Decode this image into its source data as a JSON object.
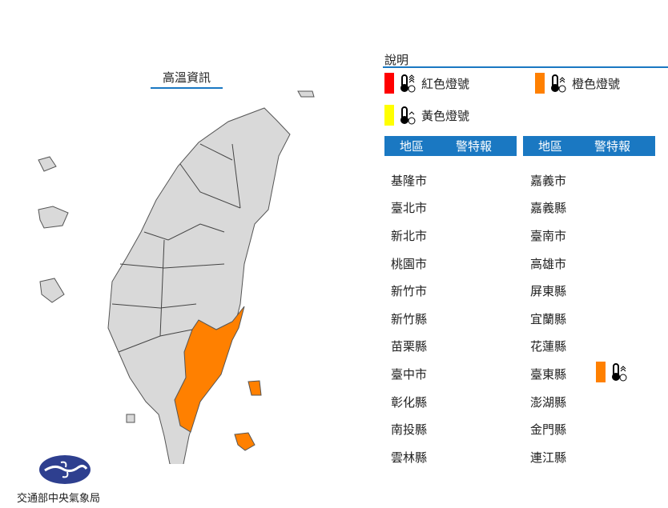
{
  "map": {
    "title": "高溫資訊",
    "highlighted": [
      "臺東縣"
    ],
    "highlight_color": "#ff8000",
    "land_color": "#d9d9d9"
  },
  "legend": {
    "title": "說明",
    "items": [
      {
        "label": "紅色燈號",
        "color": "#ff0000",
        "icon": "thermometer-alert-icon"
      },
      {
        "label": "橙色燈號",
        "color": "#ff8000",
        "icon": "thermometer-alert-icon"
      },
      {
        "label": "黃色燈號",
        "color": "#ffff00",
        "icon": "thermometer-alert-icon"
      }
    ]
  },
  "table": {
    "headers": [
      "地區",
      "警特報"
    ],
    "left": [
      {
        "name": "基隆市"
      },
      {
        "name": "臺北市"
      },
      {
        "name": "新北市"
      },
      {
        "name": "桃園市"
      },
      {
        "name": "新竹市"
      },
      {
        "name": "新竹縣"
      },
      {
        "name": "苗栗縣"
      },
      {
        "name": "臺中市"
      },
      {
        "name": "彰化縣"
      },
      {
        "name": "南投縣"
      },
      {
        "name": "雲林縣"
      }
    ],
    "right": [
      {
        "name": "嘉義市"
      },
      {
        "name": "嘉義縣"
      },
      {
        "name": "臺南市"
      },
      {
        "name": "高雄市"
      },
      {
        "name": "屏東縣"
      },
      {
        "name": "宜蘭縣"
      },
      {
        "name": "花蓮縣"
      },
      {
        "name": "臺東縣",
        "warning": "橙色燈號",
        "color": "#ff8000"
      },
      {
        "name": "澎湖縣"
      },
      {
        "name": "金門縣"
      },
      {
        "name": "連江縣"
      }
    ]
  },
  "logo": {
    "text": "交通部中央氣象局",
    "color": "#2e3f8f"
  }
}
